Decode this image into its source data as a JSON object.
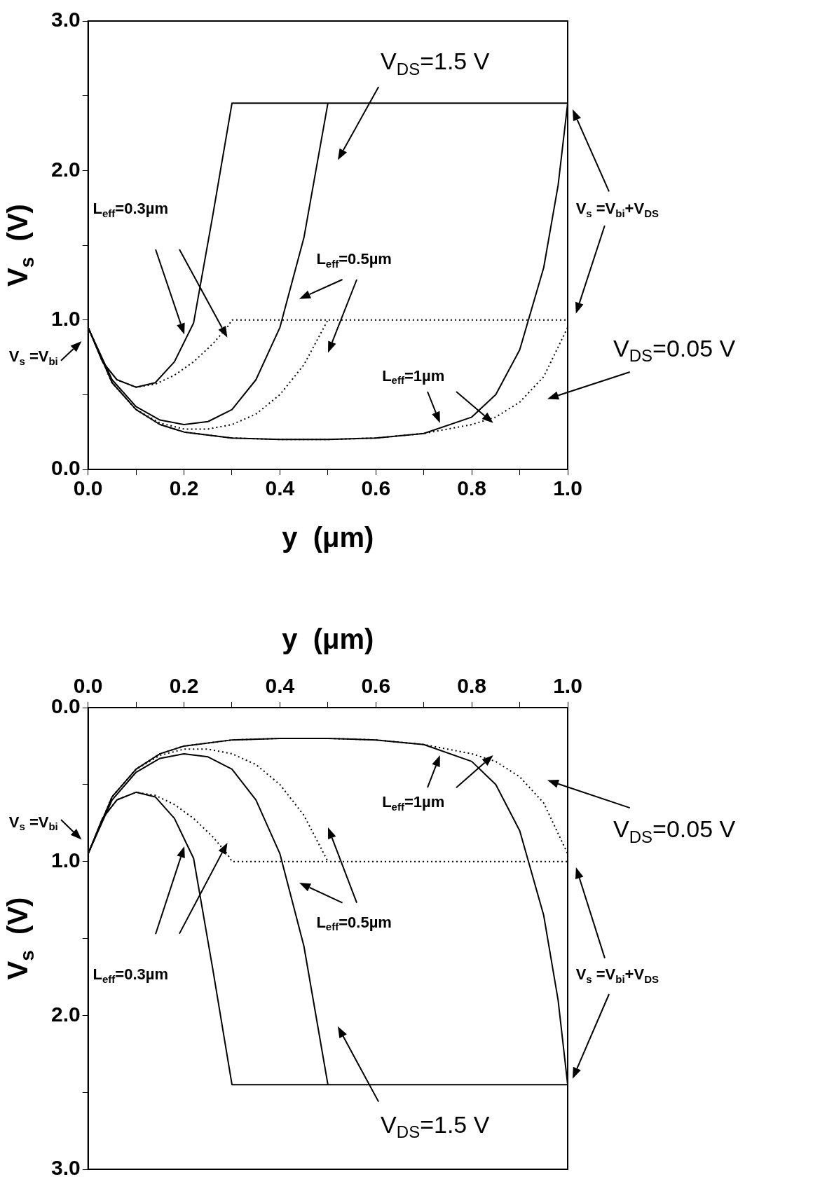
{
  "chart_data": [
    {
      "type": "line",
      "xlabel": "y  (μm)",
      "ylabel": "V$_{s}$  (V)",
      "xlim": [
        0,
        1
      ],
      "ylim": [
        0,
        3
      ],
      "xticks": [
        {
          "value": 0,
          "label": "0.0"
        },
        {
          "value": 0.1,
          "label": null
        },
        {
          "value": 0.2,
          "label": "0.2"
        },
        {
          "value": 0.3,
          "label": null
        },
        {
          "value": 0.4,
          "label": "0.4"
        },
        {
          "value": 0.5,
          "label": null
        },
        {
          "value": 0.6,
          "label": "0.6"
        },
        {
          "value": 0.7,
          "label": null
        },
        {
          "value": 0.8,
          "label": "0.8"
        },
        {
          "value": 0.9,
          "label": null
        },
        {
          "value": 1,
          "label": "1.0"
        }
      ],
      "yticks": [
        {
          "value": 0,
          "label": "0.0"
        },
        {
          "value": 0.5,
          "label": null
        },
        {
          "value": 1,
          "label": "1.0"
        },
        {
          "value": 1.5,
          "label": null
        },
        {
          "value": 2,
          "label": "2.0"
        },
        {
          "value": 2.5,
          "label": null
        },
        {
          "value": 3,
          "label": "3.0"
        }
      ],
      "grid": false,
      "legend": false,
      "series": [
        {
          "color": "#000000",
          "line_style": "solid",
          "x": [
            0,
            0.03,
            0.06,
            0.1,
            0.14,
            0.18,
            0.22,
            0.26,
            0.3,
            1.0
          ],
          "values": [
            0.95,
            0.72,
            0.6,
            0.55,
            0.58,
            0.72,
            0.98,
            1.7,
            2.45,
            2.45
          ]
        },
        {
          "color": "#000000",
          "line_style": "dotted",
          "x": [
            0,
            0.03,
            0.06,
            0.1,
            0.14,
            0.18,
            0.22,
            0.26,
            0.29,
            0.3,
            1.0
          ],
          "values": [
            0.95,
            0.72,
            0.6,
            0.55,
            0.57,
            0.63,
            0.72,
            0.84,
            0.95,
            1.0,
            1.0
          ]
        },
        {
          "color": "#000000",
          "line_style": "solid",
          "x": [
            0,
            0.05,
            0.1,
            0.15,
            0.2,
            0.25,
            0.3,
            0.35,
            0.4,
            0.45,
            0.5
          ],
          "values": [
            0.95,
            0.6,
            0.42,
            0.33,
            0.3,
            0.32,
            0.4,
            0.6,
            0.95,
            1.55,
            2.45
          ]
        },
        {
          "color": "#000000",
          "line_style": "dotted",
          "x": [
            0,
            0.05,
            0.1,
            0.15,
            0.2,
            0.25,
            0.3,
            0.35,
            0.4,
            0.45,
            0.5
          ],
          "values": [
            0.95,
            0.58,
            0.4,
            0.31,
            0.27,
            0.27,
            0.3,
            0.37,
            0.5,
            0.7,
            1.0
          ]
        },
        {
          "color": "#000000",
          "line_style": "solid",
          "x": [
            0,
            0.05,
            0.1,
            0.15,
            0.2,
            0.3,
            0.4,
            0.5,
            0.6,
            0.7,
            0.8,
            0.85,
            0.9,
            0.95,
            0.98,
            1.0
          ],
          "values": [
            0.95,
            0.58,
            0.4,
            0.3,
            0.25,
            0.21,
            0.2,
            0.2,
            0.21,
            0.24,
            0.35,
            0.5,
            0.8,
            1.35,
            1.9,
            2.45
          ]
        },
        {
          "color": "#000000",
          "line_style": "dotted",
          "x": [
            0,
            0.05,
            0.1,
            0.15,
            0.2,
            0.3,
            0.4,
            0.5,
            0.6,
            0.7,
            0.8,
            0.85,
            0.9,
            0.95,
            1.0
          ],
          "values": [
            0.95,
            0.58,
            0.4,
            0.3,
            0.25,
            0.21,
            0.2,
            0.2,
            0.21,
            0.24,
            0.3,
            0.35,
            0.45,
            0.62,
            0.95
          ]
        }
      ],
      "annotations": [
        "V$_{DS}$=1.5 V",
        "L$_{eff}$=0.3µm",
        "L$_{eff}$=0.5µm",
        "V$_{s}$ =V$_{bi}$+V$_{DS}$",
        "V$_{s}$ =V$_{bi}$",
        "V$_{DS}$=0.05 V",
        "L$_{eff}$=1µm"
      ]
    },
    {
      "type": "line",
      "xlabel": "y  (μm)",
      "ylabel": "V$_{s}$  (V)",
      "xlim": [
        0,
        1
      ],
      "ylim": [
        3,
        0
      ],
      "xticks": [
        {
          "value": 0,
          "label": "0.0"
        },
        {
          "value": 0.1,
          "label": null
        },
        {
          "value": 0.2,
          "label": "0.2"
        },
        {
          "value": 0.3,
          "label": null
        },
        {
          "value": 0.4,
          "label": "0.4"
        },
        {
          "value": 0.5,
          "label": null
        },
        {
          "value": 0.6,
          "label": "0.6"
        },
        {
          "value": 0.7,
          "label": null
        },
        {
          "value": 0.8,
          "label": "0.8"
        },
        {
          "value": 0.9,
          "label": null
        },
        {
          "value": 1,
          "label": "1.0"
        }
      ],
      "yticks": [
        {
          "value": 0,
          "label": "0.0"
        },
        {
          "value": 0.5,
          "label": null
        },
        {
          "value": 1,
          "label": "1.0"
        },
        {
          "value": 1.5,
          "label": null
        },
        {
          "value": 2,
          "label": "2.0"
        },
        {
          "value": 2.5,
          "label": null
        },
        {
          "value": 3,
          "label": "3.0"
        }
      ],
      "grid": false,
      "legend": false,
      "series": [
        {
          "color": "#000000",
          "line_style": "solid",
          "x": [
            0,
            0.03,
            0.06,
            0.1,
            0.14,
            0.18,
            0.22,
            0.26,
            0.3,
            1.0
          ],
          "values": [
            0.95,
            0.72,
            0.6,
            0.55,
            0.58,
            0.72,
            0.98,
            1.7,
            2.45,
            2.45
          ]
        },
        {
          "color": "#000000",
          "line_style": "dotted",
          "x": [
            0,
            0.03,
            0.06,
            0.1,
            0.14,
            0.18,
            0.22,
            0.26,
            0.29,
            0.3,
            1.0
          ],
          "values": [
            0.95,
            0.72,
            0.6,
            0.55,
            0.57,
            0.63,
            0.72,
            0.84,
            0.95,
            1.0,
            1.0
          ]
        },
        {
          "color": "#000000",
          "line_style": "solid",
          "x": [
            0,
            0.05,
            0.1,
            0.15,
            0.2,
            0.25,
            0.3,
            0.35,
            0.4,
            0.45,
            0.5
          ],
          "values": [
            0.95,
            0.6,
            0.42,
            0.33,
            0.3,
            0.32,
            0.4,
            0.6,
            0.95,
            1.55,
            2.45
          ]
        },
        {
          "color": "#000000",
          "line_style": "dotted",
          "x": [
            0,
            0.05,
            0.1,
            0.15,
            0.2,
            0.25,
            0.3,
            0.35,
            0.4,
            0.45,
            0.5
          ],
          "values": [
            0.95,
            0.58,
            0.4,
            0.31,
            0.27,
            0.27,
            0.3,
            0.37,
            0.5,
            0.7,
            1.0
          ]
        },
        {
          "color": "#000000",
          "line_style": "solid",
          "x": [
            0,
            0.05,
            0.1,
            0.15,
            0.2,
            0.3,
            0.4,
            0.5,
            0.6,
            0.7,
            0.8,
            0.85,
            0.9,
            0.95,
            0.98,
            1.0
          ],
          "values": [
            0.95,
            0.58,
            0.4,
            0.3,
            0.25,
            0.21,
            0.2,
            0.2,
            0.21,
            0.24,
            0.35,
            0.5,
            0.8,
            1.35,
            1.9,
            2.45
          ]
        },
        {
          "color": "#000000",
          "line_style": "dotted",
          "x": [
            0,
            0.05,
            0.1,
            0.15,
            0.2,
            0.3,
            0.4,
            0.5,
            0.6,
            0.7,
            0.8,
            0.85,
            0.9,
            0.95,
            1.0
          ],
          "values": [
            0.95,
            0.58,
            0.4,
            0.3,
            0.25,
            0.21,
            0.2,
            0.2,
            0.21,
            0.24,
            0.3,
            0.35,
            0.45,
            0.62,
            0.95
          ]
        }
      ],
      "annotations": [
        "V$_{DS}$=1.5 V",
        "L$_{eff}$=0.3µm",
        "L$_{eff}$=0.5µm",
        "V$_{s}$ =V$_{bi}$+V$_{DS}$",
        "V$_{s}$ =V$_{bi}$",
        "V$_{DS}$=0.05 V",
        "L$_{eff}$=1µm"
      ]
    }
  ]
}
